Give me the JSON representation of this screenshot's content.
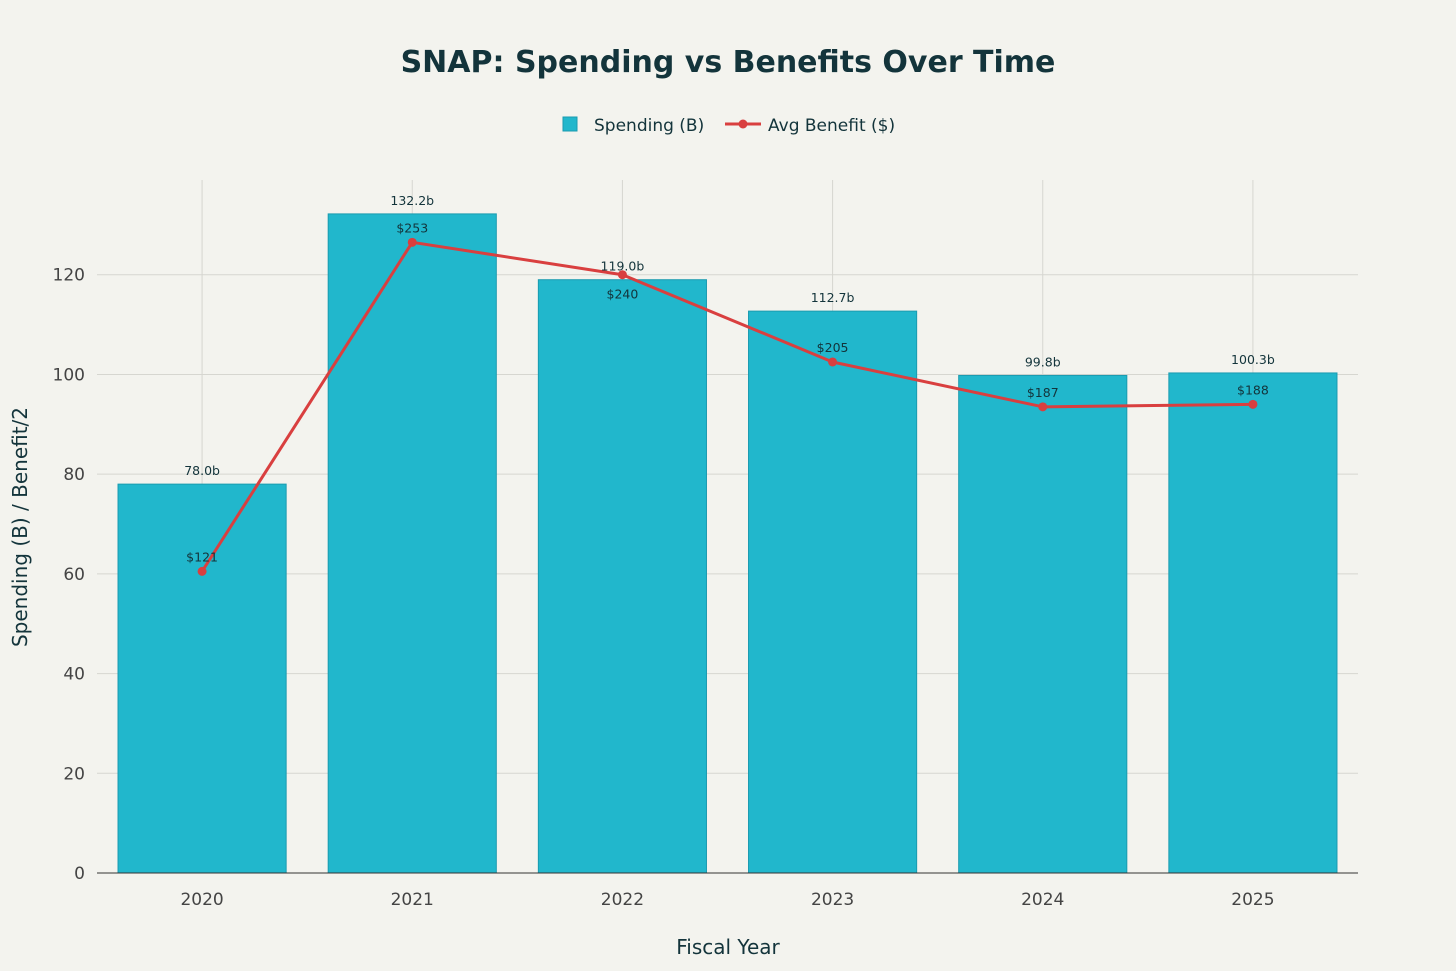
{
  "chart_data": {
    "type": "bar",
    "title": "SNAP: Spending vs Benefits Over Time",
    "xlabel": "Fiscal Year",
    "ylabel": "Spending (B) / Benefit/2",
    "categories": [
      "2020",
      "2021",
      "2022",
      "2023",
      "2024",
      "2025"
    ],
    "ylim": [
      0,
      139
    ],
    "yticks": [
      0,
      20,
      40,
      60,
      80,
      100,
      120
    ],
    "grid": true,
    "legend_placement": "top-center",
    "series": [
      {
        "name": "Spending (B)",
        "type": "bar",
        "color": "#21b7cc",
        "values": [
          78.0,
          132.2,
          119.0,
          112.7,
          99.8,
          100.3
        ],
        "labels": [
          "78.0b",
          "132.2b",
          "119.0b",
          "112.7b",
          "99.8b",
          "100.3b"
        ]
      },
      {
        "name": "Avg Benefit ($)",
        "type": "line",
        "color": "#d93f3f",
        "values": [
          60.5,
          126.5,
          120.0,
          102.5,
          93.5,
          94.0
        ],
        "labels": [
          "$121",
          "$253",
          "$240",
          "$205",
          "$187",
          "$188"
        ]
      }
    ]
  }
}
